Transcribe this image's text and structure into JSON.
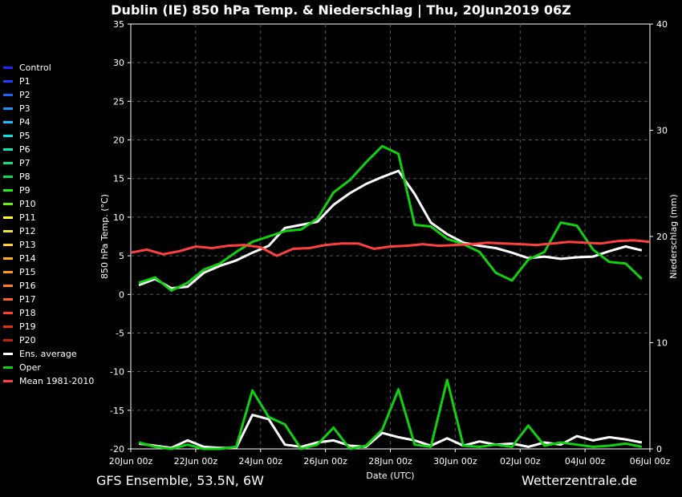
{
  "title": "Dublin  (IE)  850 hPa Temp. & Niederschlag | Thu, 20Jun2019 06Z",
  "footer": {
    "left": "GFS Ensemble, 53.5N, 6W",
    "right": "Wetterzentrale.de"
  },
  "chart_data": {
    "type": "line",
    "xlabel": "Date (UTC)",
    "ylabel_left": "850 hPa Temp. (°C)",
    "ylabel_right": "Niederschlag (mm)",
    "x_ticks": [
      "20Jun 00z",
      "22Jun 00z",
      "24Jun 00z",
      "26Jun 00z",
      "28Jun 00z",
      "30Jun 00z",
      "02Jul 00z",
      "04Jul 00z",
      "06Jul 00z"
    ],
    "x_tick_hours": [
      0,
      48,
      96,
      144,
      192,
      240,
      288,
      336,
      384
    ],
    "x_range_hours": [
      0,
      384
    ],
    "ylim_left": [
      -20,
      35
    ],
    "y_ticks_left": [
      35,
      30,
      25,
      20,
      15,
      10,
      5,
      0,
      -5,
      -10,
      -15,
      -20
    ],
    "ylim_right": [
      0,
      40
    ],
    "y_ticks_right": [
      40,
      30,
      20,
      10,
      0
    ],
    "grid": true,
    "legend_position": "left",
    "series_colors": {
      "Control": "#2222ff",
      "P1": "#1d3dff",
      "P2": "#1a66ff",
      "P3": "#1f8fff",
      "P4": "#1fbfff",
      "P5": "#10e0e0",
      "P6": "#10e8b0",
      "P7": "#10e080",
      "P8": "#10d850",
      "P9": "#20f020",
      "P10": "#66f010",
      "P11": "#ffff20",
      "P12": "#f0e040",
      "P13": "#ffd030",
      "P14": "#ffb020",
      "P15": "#ff9a10",
      "P16": "#ff7f20",
      "P17": "#ff6020",
      "P18": "#ff4020",
      "P19": "#e03010",
      "P20": "#c02010",
      "Ens. average": "#ffffff",
      "Oper": "#10d010",
      "Mean 1981-2010": "#ff4040"
    },
    "series": [
      {
        "name": "Ens. average",
        "x": [
          6,
          18,
          30,
          42,
          54,
          66,
          78,
          90,
          102,
          114,
          126,
          138,
          150,
          162,
          174,
          186,
          198,
          210,
          222,
          234,
          246,
          258,
          270,
          282,
          294,
          306,
          318,
          330,
          342,
          354,
          366,
          378
        ],
        "y": [
          1.2,
          2.0,
          0.8,
          1.0,
          2.8,
          3.7,
          4.4,
          5.4,
          6.3,
          8.6,
          9.0,
          9.4,
          11.6,
          13.1,
          14.3,
          15.2,
          16.0,
          13.0,
          9.3,
          7.8,
          6.7,
          6.3,
          6.0,
          5.4,
          4.7,
          4.9,
          4.6,
          4.8,
          4.9,
          5.6,
          6.2,
          5.7
        ]
      },
      {
        "name": "Oper",
        "x": [
          6,
          18,
          30,
          42,
          54,
          66,
          78,
          90,
          102,
          114,
          126,
          138,
          150,
          162,
          174,
          186,
          198,
          210,
          222,
          234,
          246,
          258,
          270,
          282,
          294,
          306,
          318,
          330,
          342,
          354,
          366,
          378
        ],
        "y": [
          1.5,
          2.2,
          0.5,
          1.5,
          3.2,
          4.0,
          5.5,
          6.8,
          7.5,
          8.2,
          8.4,
          9.8,
          13.2,
          14.8,
          17.1,
          19.2,
          18.2,
          9.0,
          8.8,
          7.2,
          6.5,
          5.5,
          2.8,
          1.8,
          4.5,
          5.5,
          9.3,
          8.9,
          5.8,
          4.2,
          4.0,
          2.0
        ]
      },
      {
        "name": "Mean 1981-2010",
        "x": [
          0,
          12,
          24,
          36,
          48,
          60,
          72,
          84,
          96,
          108,
          120,
          132,
          144,
          156,
          168,
          180,
          192,
          204,
          216,
          228,
          240,
          252,
          264,
          276,
          288,
          300,
          312,
          324,
          336,
          348,
          360,
          372,
          384
        ],
        "y": [
          5.4,
          5.8,
          5.2,
          5.6,
          6.2,
          6.0,
          6.3,
          6.4,
          6.1,
          5.0,
          5.9,
          6.0,
          6.4,
          6.6,
          6.6,
          5.9,
          6.2,
          6.3,
          6.5,
          6.3,
          6.4,
          6.5,
          6.7,
          6.6,
          6.5,
          6.4,
          6.6,
          6.8,
          6.7,
          6.6,
          6.9,
          7.0,
          6.8
        ]
      },
      {
        "name": "Ens. average precipitation",
        "axis": "right",
        "x": [
          6,
          18,
          30,
          42,
          54,
          66,
          78,
          90,
          102,
          114,
          126,
          138,
          150,
          162,
          174,
          186,
          198,
          210,
          222,
          234,
          246,
          258,
          270,
          282,
          294,
          306,
          318,
          330,
          342,
          354,
          366,
          378
        ],
        "y": [
          0.5,
          0.3,
          0.1,
          0.8,
          0.2,
          0.1,
          0.1,
          3.2,
          2.8,
          0.4,
          0.2,
          0.6,
          0.8,
          0.3,
          0.2,
          1.5,
          1.1,
          0.8,
          0.3,
          1.0,
          0.3,
          0.7,
          0.4,
          0.5,
          0.2,
          0.6,
          0.4,
          1.2,
          0.8,
          1.1,
          0.9,
          0.6
        ]
      },
      {
        "name": "Oper precipitation",
        "axis": "right",
        "x": [
          6,
          18,
          30,
          42,
          54,
          66,
          78,
          90,
          102,
          114,
          126,
          138,
          150,
          162,
          174,
          186,
          198,
          210,
          222,
          234,
          246,
          258,
          270,
          282,
          294,
          306,
          318,
          330,
          342,
          354,
          366,
          378
        ],
        "y": [
          0.6,
          0.2,
          0.0,
          0.4,
          0.0,
          0.0,
          0.2,
          5.5,
          3.0,
          2.3,
          0.0,
          0.4,
          2.0,
          0.0,
          0.3,
          1.8,
          5.6,
          0.4,
          0.2,
          6.5,
          0.3,
          0.2,
          0.4,
          0.2,
          2.2,
          0.3,
          0.6,
          0.4,
          0.2,
          0.3,
          0.5,
          0.2
        ]
      }
    ]
  }
}
